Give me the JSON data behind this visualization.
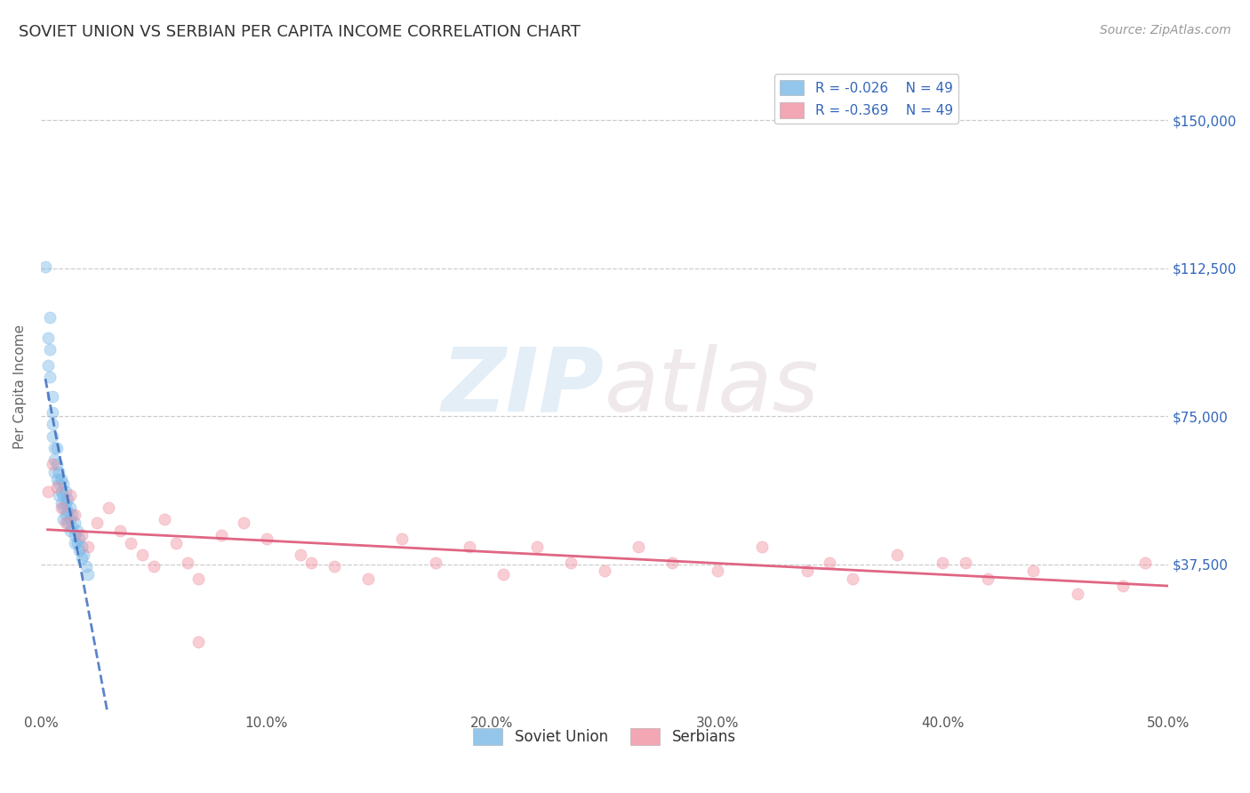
{
  "title": "SOVIET UNION VS SERBIAN PER CAPITA INCOME CORRELATION CHART",
  "source_text": "Source: ZipAtlas.com",
  "ylabel": "Per Capita Income",
  "watermark_zip": "ZIP",
  "watermark_atlas": "atlas",
  "xlim": [
    0.0,
    0.5
  ],
  "ylim": [
    0,
    165000
  ],
  "yticks": [
    0,
    37500,
    75000,
    112500,
    150000
  ],
  "ytick_labels": [
    "",
    "$37,500",
    "$75,000",
    "$112,500",
    "$150,000"
  ],
  "xticks": [
    0.0,
    0.1,
    0.2,
    0.3,
    0.4,
    0.5
  ],
  "xtick_labels": [
    "0.0%",
    "10.0%",
    "20.0%",
    "30.0%",
    "40.0%",
    "50.0%"
  ],
  "legend_R_blue": "R = -0.026",
  "legend_N_blue": "N = 49",
  "legend_R_pink": "R = -0.369",
  "legend_N_pink": "N = 49",
  "legend_label_blue": "Soviet Union",
  "legend_label_pink": "Serbians",
  "soviet_scatter_x": [
    0.002,
    0.003,
    0.003,
    0.004,
    0.004,
    0.004,
    0.005,
    0.005,
    0.005,
    0.005,
    0.006,
    0.006,
    0.006,
    0.007,
    0.007,
    0.007,
    0.008,
    0.008,
    0.008,
    0.009,
    0.009,
    0.009,
    0.01,
    0.01,
    0.01,
    0.01,
    0.011,
    0.011,
    0.011,
    0.012,
    0.012,
    0.012,
    0.013,
    0.013,
    0.013,
    0.014,
    0.014,
    0.015,
    0.015,
    0.015,
    0.016,
    0.016,
    0.017,
    0.017,
    0.018,
    0.018,
    0.019,
    0.02,
    0.021
  ],
  "soviet_scatter_y": [
    113000,
    95000,
    88000,
    100000,
    92000,
    85000,
    80000,
    76000,
    73000,
    70000,
    67000,
    64000,
    61000,
    67000,
    63000,
    59000,
    61000,
    58000,
    55000,
    59000,
    56000,
    53000,
    58000,
    55000,
    52000,
    49000,
    56000,
    53000,
    50000,
    54000,
    51000,
    48000,
    52000,
    49000,
    46000,
    50000,
    47000,
    48000,
    45000,
    43000,
    46000,
    43000,
    44000,
    41000,
    42000,
    39000,
    40000,
    37000,
    35000
  ],
  "serbian_scatter_x": [
    0.003,
    0.005,
    0.007,
    0.009,
    0.011,
    0.013,
    0.015,
    0.018,
    0.021,
    0.025,
    0.03,
    0.035,
    0.04,
    0.045,
    0.05,
    0.055,
    0.06,
    0.065,
    0.07,
    0.08,
    0.09,
    0.1,
    0.115,
    0.13,
    0.145,
    0.16,
    0.175,
    0.19,
    0.205,
    0.22,
    0.235,
    0.25,
    0.265,
    0.28,
    0.3,
    0.32,
    0.34,
    0.36,
    0.38,
    0.4,
    0.42,
    0.44,
    0.46,
    0.48,
    0.49,
    0.35,
    0.41,
    0.12,
    0.07
  ],
  "serbian_scatter_y": [
    56000,
    63000,
    57000,
    52000,
    48000,
    55000,
    50000,
    45000,
    42000,
    48000,
    52000,
    46000,
    43000,
    40000,
    37000,
    49000,
    43000,
    38000,
    34000,
    45000,
    48000,
    44000,
    40000,
    37000,
    34000,
    44000,
    38000,
    42000,
    35000,
    42000,
    38000,
    36000,
    42000,
    38000,
    36000,
    42000,
    36000,
    34000,
    40000,
    38000,
    34000,
    36000,
    30000,
    32000,
    38000,
    38000,
    38000,
    38000,
    18000
  ],
  "background_color": "#ffffff",
  "grid_color": "#cccccc",
  "scatter_alpha": 0.45,
  "scatter_size": 90,
  "blue_color": "#7ab8e8",
  "pink_color": "#f090a0",
  "blue_line_color": "#3366bb",
  "pink_line_color": "#dd5577",
  "title_color": "#333333",
  "axis_label_color": "#666666",
  "tick_color_right": "#3366bb",
  "source_color": "#999999"
}
